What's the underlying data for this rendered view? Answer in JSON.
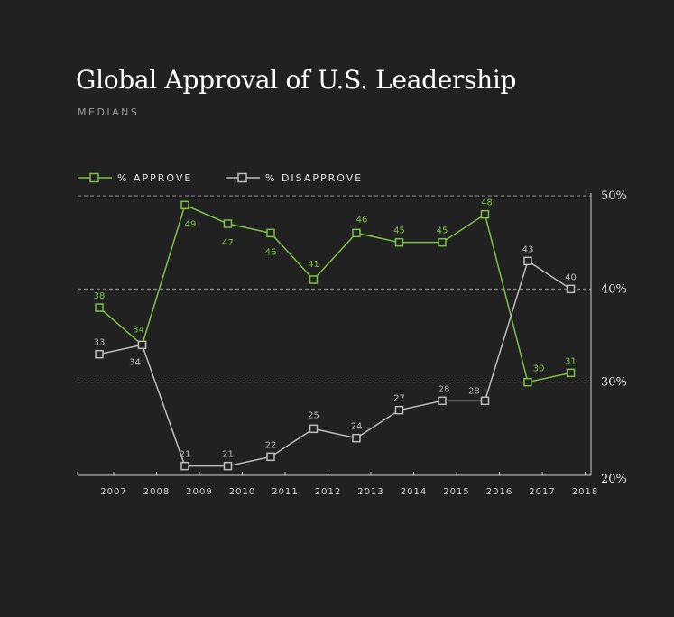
{
  "title": "Global Approval of U.S. Leadership",
  "subtitle": "MEDIANS",
  "colors": {
    "approve": "#7dc249",
    "disapprove": "#bdbdbd",
    "background": "#212121"
  },
  "chart_data": {
    "type": "line",
    "x": [
      "2007",
      "2008",
      "2009",
      "2010",
      "2011",
      "2012",
      "2013",
      "2014",
      "2015",
      "2016",
      "2017",
      "2018"
    ],
    "series": [
      {
        "name": "% APPROVE",
        "values": [
          38,
          34,
          49,
          47,
          46,
          41,
          46,
          45,
          45,
          48,
          30,
          31
        ]
      },
      {
        "name": "% DISAPPROVE",
        "values": [
          33,
          34,
          21,
          21,
          22,
          25,
          24,
          27,
          28,
          28,
          43,
          40
        ]
      }
    ],
    "yticks": [
      "20%",
      "30%",
      "40%",
      "50%"
    ],
    "ylim": [
      20,
      50
    ],
    "grid": true,
    "legend_position": "top-left"
  }
}
